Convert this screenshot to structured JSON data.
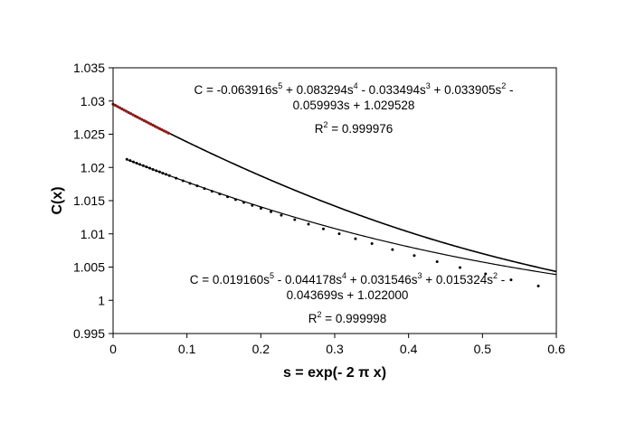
{
  "chart_data": {
    "type": "scatter",
    "xlabel": "s = exp(- 2 π x)",
    "ylabel": "C(x)",
    "xlim": [
      0,
      0.6
    ],
    "ylim": [
      0.995,
      1.035
    ],
    "xticks": [
      "0",
      "0.1",
      "0.2",
      "0.3",
      "0.4",
      "0.5",
      "0.6"
    ],
    "yticks": [
      "0.995",
      "1",
      "1.005",
      "1.01",
      "1.015",
      "1.02",
      "1.025",
      "1.03",
      "1.035"
    ],
    "grid": false,
    "series": [
      {
        "color": "#8b1a1a",
        "fit_color": "#000000",
        "coefficients": [
          1.029528,
          -0.059993,
          0.033905,
          -0.033494,
          0.083294,
          -0.063916
        ],
        "x": [
          0,
          0.003,
          0.006,
          0.009,
          0.012,
          0.015,
          0.018,
          0.021,
          0.024,
          0.027,
          0.03,
          0.033,
          0.036,
          0.039,
          0.042,
          0.045,
          0.048,
          0.051,
          0.054,
          0.057,
          0.06,
          0.063,
          0.066,
          0.069,
          0.072,
          0.075
        ],
        "y": [
          1.02953,
          1.02935,
          1.02917,
          1.02899,
          1.02881,
          1.02863,
          1.02845,
          1.02827,
          1.0281,
          1.02792,
          1.02774,
          1.02757,
          1.02739,
          1.02722,
          1.02704,
          1.02687,
          1.0267,
          1.02653,
          1.02636,
          1.02618,
          1.02601,
          1.02584,
          1.02567,
          1.0255,
          1.02534,
          1.02517
        ]
      },
      {
        "color": "#000000",
        "fit_color": "#000000",
        "coefficients": [
          1.022,
          -0.043699,
          0.015324,
          0.031546,
          -0.044178,
          0.01916
        ],
        "x": [
          0.0187,
          0.0231,
          0.0275,
          0.0319,
          0.0363,
          0.0408,
          0.0452,
          0.0496,
          0.054,
          0.0585,
          0.0629,
          0.0673,
          0.0717,
          0.0762,
          0.0853,
          0.0946,
          0.1041,
          0.1138,
          0.1237,
          0.1339,
          0.1443,
          0.155,
          0.1659,
          0.177,
          0.1884,
          0.2001,
          0.2137,
          0.2277,
          0.2459,
          0.2645,
          0.2847,
          0.3061,
          0.3281,
          0.3504,
          0.3782,
          0.4077,
          0.4386,
          0.4696,
          0.5042,
          0.5387,
          0.5756
        ],
        "y": [
          1.02122,
          1.02103,
          1.02084,
          1.02065,
          1.02046,
          1.02027,
          1.02008,
          1.01989,
          1.0197,
          1.01951,
          1.01933,
          1.01914,
          1.01896,
          1.01877,
          1.01839,
          1.018,
          1.01761,
          1.01722,
          1.01682,
          1.01641,
          1.016,
          1.01558,
          1.01516,
          1.01473,
          1.01429,
          1.01384,
          1.01333,
          1.01281,
          1.01214,
          1.01147,
          1.01075,
          1.01001,
          1.00927,
          1.00853,
          1.00764,
          1.00673,
          1.00581,
          1.00493,
          1.00398,
          1.00308,
          1.00216
        ]
      }
    ],
    "annotations": [
      {
        "line1_parts": [
          "C = -0.063916s",
          "5",
          " + 0.083294s",
          "4",
          " - 0.033494s",
          "3",
          " + 0.033905s",
          "2",
          " -"
        ],
        "line2": "0.059993s + 1.029528",
        "r2_prefix": "R",
        "r2_sup": "2",
        "r2_value": " = 0.999976"
      },
      {
        "line1_parts": [
          "C = 0.019160s",
          "5",
          " - 0.044178s",
          "4",
          " + 0.031546s",
          "3",
          " + 0.015324s",
          "2",
          " -"
        ],
        "line2": "0.043699s + 1.022000",
        "r2_prefix": "R",
        "r2_sup": "2",
        "r2_value": " = 0.999998"
      }
    ]
  }
}
